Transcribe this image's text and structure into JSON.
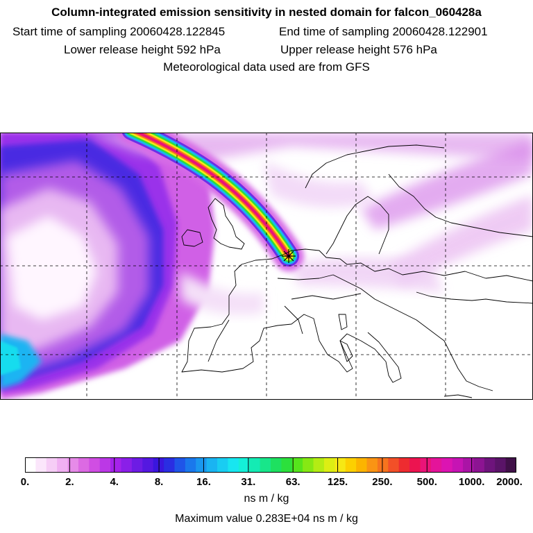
{
  "header": {
    "title": "Column-integrated emission sensitivity in nested domain for falcon_060428a",
    "start_time": "Start time of sampling 20060428.122845",
    "end_time": "End time of sampling 20060428.122901",
    "lower_height": "Lower release height  592 hPa",
    "upper_height": "Upper release height  576 hPa",
    "met_data": "Meteorological data used are from GFS"
  },
  "colorbar": {
    "tick_labels": [
      "0.",
      "2.",
      "4.",
      "8.",
      "16.",
      "31.",
      "63.",
      "125.",
      "250.",
      "500.",
      "1000.",
      "2000."
    ],
    "colors": [
      "#ffffff",
      "#fbe6fb",
      "#f6cdf6",
      "#f0b0f2",
      "#e68be8",
      "#dc6ae3",
      "#d04ee3",
      "#bb38e6",
      "#a523ea",
      "#8a1fe8",
      "#6d1ce4",
      "#5418e0",
      "#3a16dd",
      "#2a2ee2",
      "#1f55e8",
      "#1a78ec",
      "#1a97ef",
      "#1ab4f2",
      "#19cdf2",
      "#18e6f0",
      "#14f0d8",
      "#14ebb4",
      "#18e68a",
      "#1ee060",
      "#2ce03c",
      "#56e41c",
      "#86e814",
      "#b4ec14",
      "#dcee14",
      "#f6e814",
      "#fcd000",
      "#fcb400",
      "#fa9414",
      "#f6741e",
      "#f25028",
      "#ee2c30",
      "#ec1450",
      "#ea1478",
      "#e4149a",
      "#dc14b2",
      "#c614b4",
      "#aa14a6",
      "#8c1492",
      "#6e147c",
      "#5a1468",
      "#401048"
    ],
    "units": "ns m / kg",
    "max_value": "Maximum value  0.283E+04 ns m / kg"
  },
  "map": {
    "source_marker": "release-point-star",
    "grid_style": "dashed"
  }
}
